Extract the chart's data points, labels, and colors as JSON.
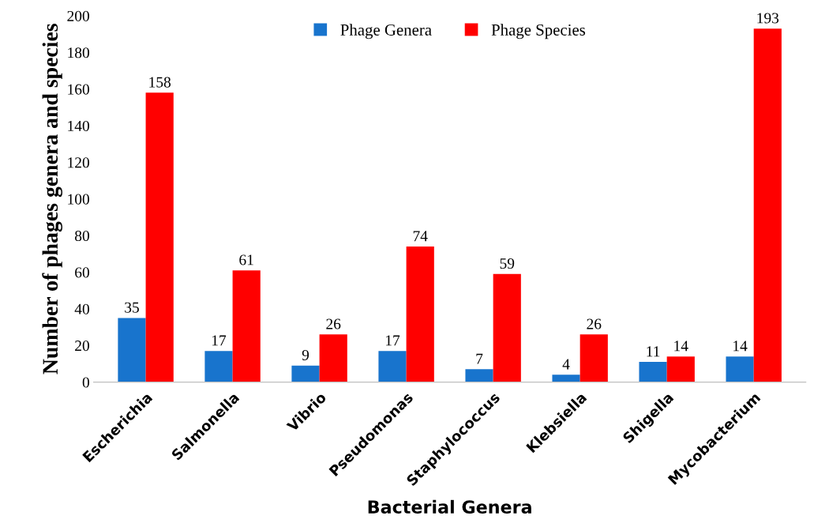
{
  "chart_data": {
    "type": "bar",
    "xlabel": "Bacterial Genera",
    "ylabel": "Number of phages genera and species",
    "categories": [
      "Escherichia",
      "Salmonella",
      "Vibrio",
      "Pseudomonas",
      "Staphylococcus",
      "Klebsiella",
      "Shigella",
      "Mycobacterium"
    ],
    "series": [
      {
        "name": "Phage Genera",
        "color": "#1874cd",
        "values": [
          35,
          17,
          9,
          17,
          7,
          4,
          11,
          14
        ]
      },
      {
        "name": "Phage Species",
        "color": "#ff0000",
        "values": [
          158,
          61,
          26,
          74,
          59,
          26,
          14,
          193
        ]
      }
    ],
    "ylim": [
      0,
      200
    ],
    "yticks": [
      0,
      20,
      40,
      60,
      80,
      100,
      120,
      140,
      160,
      180,
      200
    ],
    "data_labels": true,
    "grid": false,
    "legend": "top"
  }
}
